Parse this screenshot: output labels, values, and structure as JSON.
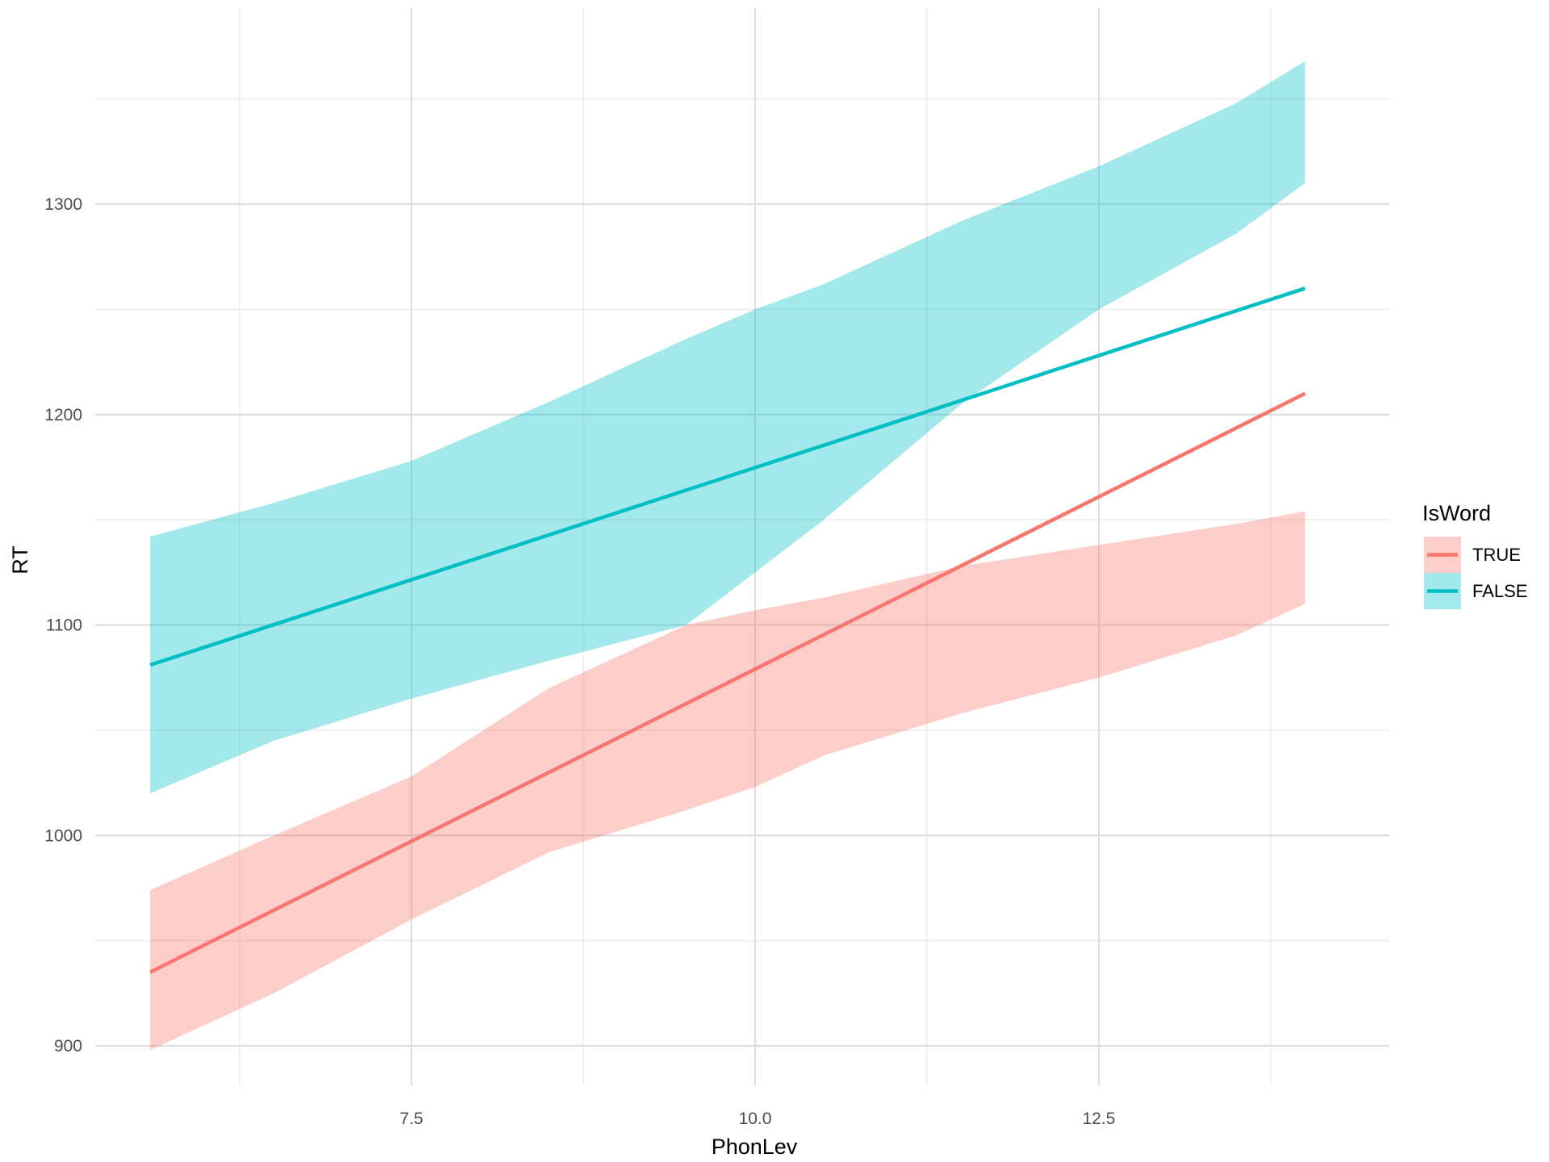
{
  "chart_data": {
    "type": "line",
    "title": "",
    "xlabel": "PhonLev",
    "ylabel": "RT",
    "xlim": [
      5.2,
      14.8
    ],
    "ylim": [
      885,
      1365
    ],
    "x_ticks": [
      7.5,
      10.0,
      12.5
    ],
    "x_tick_labels": [
      "7.5",
      "10.0",
      "12.5"
    ],
    "x_minor_ticks": [
      6.25,
      8.75,
      11.25,
      13.75
    ],
    "y_ticks": [
      900,
      1000,
      1100,
      1200,
      1300
    ],
    "y_tick_labels": [
      "900",
      "1000",
      "1100",
      "1200",
      "1300"
    ],
    "y_minor_ticks": [
      950,
      1050,
      1150,
      1250,
      1350
    ],
    "grid": true,
    "legend": {
      "title": "IsWord",
      "position": "right"
    },
    "series": [
      {
        "name": "TRUE",
        "color": "#F8766D",
        "x": [
          5.6,
          14.0
        ],
        "y": [
          935,
          1210
        ],
        "ci_lower": [
          [
            5.6,
            898
          ],
          [
            6.5,
            925
          ],
          [
            7.5,
            960
          ],
          [
            8.5,
            992
          ],
          [
            9.5,
            1012
          ],
          [
            10.0,
            1023
          ],
          [
            10.5,
            1038
          ],
          [
            11.5,
            1058
          ],
          [
            12.5,
            1075
          ],
          [
            13.5,
            1095
          ],
          [
            14.0,
            1110
          ]
        ],
        "ci_upper": [
          [
            5.6,
            974
          ],
          [
            6.5,
            1000
          ],
          [
            7.5,
            1028
          ],
          [
            8.5,
            1070
          ],
          [
            9.5,
            1100
          ],
          [
            10.0,
            1107
          ],
          [
            10.5,
            1113
          ],
          [
            11.5,
            1128
          ],
          [
            12.5,
            1138
          ],
          [
            13.5,
            1148
          ],
          [
            14.0,
            1154
          ]
        ]
      },
      {
        "name": "FALSE",
        "color": "#00BFC4",
        "x": [
          5.6,
          14.0
        ],
        "y": [
          1081,
          1260
        ],
        "ci_lower": [
          [
            5.6,
            1020
          ],
          [
            6.5,
            1045
          ],
          [
            7.5,
            1065
          ],
          [
            8.5,
            1083
          ],
          [
            9.5,
            1100
          ],
          [
            10.0,
            1125
          ],
          [
            10.5,
            1150
          ],
          [
            11.5,
            1205
          ],
          [
            12.5,
            1250
          ],
          [
            13.5,
            1286
          ],
          [
            14.0,
            1310
          ]
        ],
        "ci_upper": [
          [
            5.6,
            1142
          ],
          [
            6.5,
            1158
          ],
          [
            7.5,
            1178
          ],
          [
            8.5,
            1206
          ],
          [
            9.5,
            1236
          ],
          [
            10.0,
            1250
          ],
          [
            10.5,
            1262
          ],
          [
            11.5,
            1292
          ],
          [
            12.5,
            1318
          ],
          [
            13.5,
            1348
          ],
          [
            14.0,
            1368
          ]
        ]
      }
    ]
  }
}
